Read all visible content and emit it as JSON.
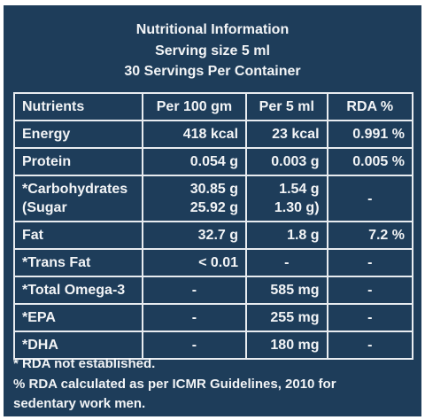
{
  "header": {
    "lines": [
      "Nutritional Information",
      "Serving size 5 ml",
      "30 Servings Per Container"
    ]
  },
  "table": {
    "columns": [
      "Nutrients",
      "Per 100 gm",
      "Per 5 ml",
      "RDA %"
    ],
    "rows": [
      [
        "Energy",
        "418 kcal",
        "23 kcal",
        "0.991 %"
      ],
      [
        "Protein",
        "0.054 g",
        "0.003 g",
        "0.005 %"
      ],
      [
        [
          "*Carbohydrates",
          "(Sugar"
        ],
        [
          "30.85 g",
          "25.92 g"
        ],
        [
          "1.54 g",
          "1.30 g)"
        ],
        "-"
      ],
      [
        "Fat",
        "32.7 g",
        "1.8 g",
        "7.2 %"
      ],
      [
        "*Trans Fat",
        "< 0.01",
        "-",
        "-"
      ],
      [
        "*Total Omega-3",
        "-",
        "585 mg",
        "-"
      ],
      [
        "*EPA",
        "-",
        "255 mg",
        "-"
      ],
      [
        "*DHA",
        "-",
        "180 mg",
        "-"
      ]
    ]
  },
  "footnotes": [
    "* RDA not established.",
    "% RDA calculated as per ICMR Guidelines, 2010 for",
    "sedentary work men."
  ]
}
